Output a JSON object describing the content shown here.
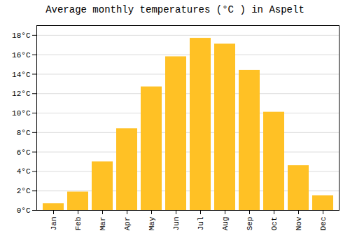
{
  "chart_data": {
    "type": "bar",
    "title": "Average monthly temperatures (°C ) in Aspelt",
    "categories": [
      "Jan",
      "Feb",
      "Mar",
      "Apr",
      "May",
      "Jun",
      "Jul",
      "Aug",
      "Sep",
      "Oct",
      "Nov",
      "Dec"
    ],
    "values": [
      0.7,
      1.9,
      5.0,
      8.4,
      12.7,
      15.8,
      17.7,
      17.1,
      14.4,
      10.1,
      4.6,
      1.5
    ],
    "color": "#FFC125",
    "ylim": [
      0,
      19
    ],
    "yticks": [
      {
        "value": 0,
        "label": "0°C"
      },
      {
        "value": 2,
        "label": "2°C"
      },
      {
        "value": 4,
        "label": "4°C"
      },
      {
        "value": 6,
        "label": "6°C"
      },
      {
        "value": 8,
        "label": "8°C"
      },
      {
        "value": 10,
        "label": "10°C"
      },
      {
        "value": 12,
        "label": "12°C"
      },
      {
        "value": 14,
        "label": "14°C"
      },
      {
        "value": 16,
        "label": "16°C"
      },
      {
        "value": 18,
        "label": "18°C"
      }
    ],
    "grid": true
  }
}
